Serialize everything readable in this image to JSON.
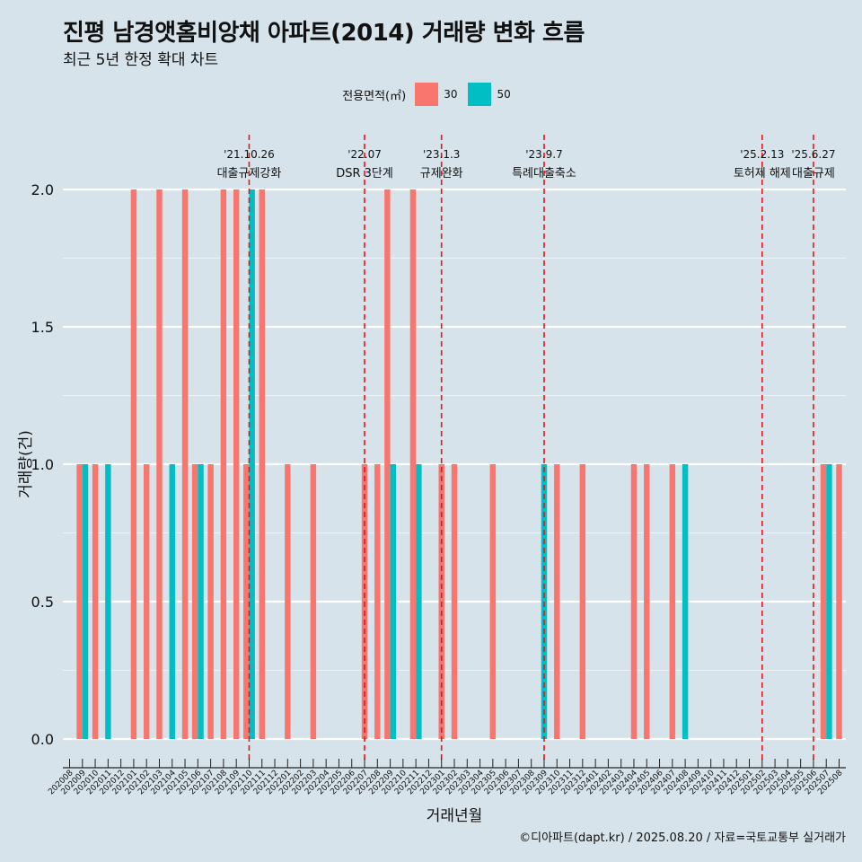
{
  "title": "진평 남경앳홈비앙채 아파트(2014) 거래량 변화 흐름",
  "subtitle": "최근 5년 한정 확대 차트",
  "legend": {
    "title": "전용면적(㎡)",
    "items": [
      {
        "label": "30",
        "color": "#f8766d"
      },
      {
        "label": "50",
        "color": "#00bfc4"
      }
    ]
  },
  "caption": "©디아파트(dapt.kr) / 2025.08.20 / 자료=국토교통부 실거래가",
  "chart_data": {
    "type": "bar",
    "stacking": "dodge",
    "xlabel": "거래년월",
    "ylabel": "거래량(건)",
    "ylim": [
      0,
      2
    ],
    "yticks": [
      "0.0",
      "0.5",
      "1.0",
      "1.5",
      "2.0"
    ],
    "grid": true,
    "legend_position": "top",
    "categories": [
      "202008",
      "202009",
      "202010",
      "202011",
      "202012",
      "202101",
      "202102",
      "202103",
      "202104",
      "202105",
      "202106",
      "202107",
      "202108",
      "202109",
      "202110",
      "202111",
      "202112",
      "202201",
      "202202",
      "202203",
      "202204",
      "202205",
      "202206",
      "202207",
      "202208",
      "202209",
      "202210",
      "202211",
      "202212",
      "202301",
      "202302",
      "202303",
      "202304",
      "202305",
      "202306",
      "202307",
      "202308",
      "202309",
      "202310",
      "202311",
      "202312",
      "202401",
      "202402",
      "202403",
      "202404",
      "202405",
      "202406",
      "202407",
      "202408",
      "202409",
      "202410",
      "202411",
      "202412",
      "202501",
      "202502",
      "202503",
      "202504",
      "202505",
      "202506",
      "202507",
      "202508"
    ],
    "series": [
      {
        "name": "30",
        "color": "#f8766d",
        "values": [
          0,
          1,
          1,
          0,
          0,
          2,
          1,
          2,
          0,
          2,
          1,
          1,
          2,
          2,
          1,
          2,
          0,
          1,
          0,
          1,
          0,
          0,
          0,
          1,
          1,
          2,
          0,
          2,
          0,
          1,
          1,
          0,
          0,
          1,
          0,
          0,
          0,
          0,
          1,
          0,
          1,
          0,
          0,
          0,
          1,
          1,
          0,
          1,
          0,
          0,
          0,
          0,
          0,
          0,
          0,
          0,
          0,
          0,
          0,
          1,
          1
        ]
      },
      {
        "name": "50",
        "color": "#00bfc4",
        "values": [
          0,
          1,
          0,
          1,
          0,
          0,
          0,
          0,
          1,
          0,
          1,
          0,
          0,
          0,
          2,
          0,
          0,
          0,
          0,
          0,
          0,
          0,
          0,
          0,
          0,
          1,
          0,
          1,
          0,
          0,
          0,
          0,
          0,
          0,
          0,
          0,
          0,
          1,
          0,
          0,
          0,
          0,
          0,
          0,
          0,
          0,
          0,
          0,
          1,
          0,
          0,
          0,
          0,
          0,
          0,
          0,
          0,
          0,
          0,
          1,
          0
        ]
      }
    ],
    "annotations": [
      {
        "date": "'21.10.26",
        "label": "대출규제강화",
        "category": "202110"
      },
      {
        "date": "'22.07",
        "label": "DSR 3단계",
        "category": "202207"
      },
      {
        "date": "'23.1.3",
        "label": "규제완화",
        "category": "202301"
      },
      {
        "date": "'23.9.7",
        "label": "특례대출축소",
        "category": "202309"
      },
      {
        "date": "'25.2.13",
        "label": "토허제 해제",
        "category": "202502"
      },
      {
        "date": "'25.6.27",
        "label": "대출규제",
        "category": "202506"
      }
    ]
  }
}
